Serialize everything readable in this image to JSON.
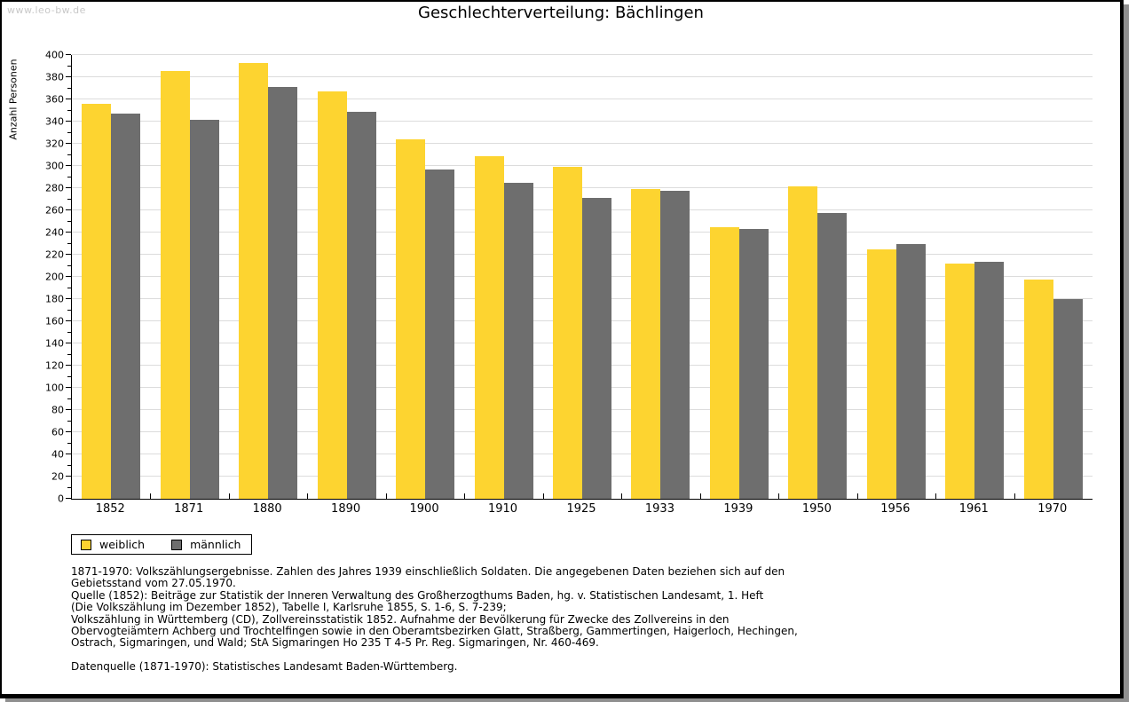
{
  "watermark": "www.leo-bw.de",
  "title": "Geschlechterverteilung: Bächlingen",
  "chart_data": {
    "type": "bar",
    "title": "Geschlechterverteilung: Bächlingen",
    "xlabel": "",
    "ylabel": "Anzahl Personen",
    "ylim": [
      0,
      400
    ],
    "ytick_step": 20,
    "minor_tick_step": 10,
    "yticks": [
      0,
      20,
      40,
      60,
      80,
      100,
      120,
      140,
      160,
      180,
      200,
      220,
      240,
      260,
      280,
      300,
      320,
      340,
      360,
      380,
      400
    ],
    "grid": true,
    "legend_position": "bottom-left",
    "categories": [
      "1852",
      "1871",
      "1880",
      "1890",
      "1900",
      "1910",
      "1925",
      "1933",
      "1939",
      "1950",
      "1956",
      "1961",
      "1970"
    ],
    "series": [
      {
        "name": "weiblich",
        "color": "#FDD430",
        "values": [
          356,
          386,
          393,
          367,
          324,
          309,
          299,
          279,
          245,
          282,
          225,
          212,
          198
        ]
      },
      {
        "name": "männlich",
        "color": "#6E6E6E",
        "values": [
          347,
          342,
          371,
          349,
          297,
          285,
          271,
          278,
          243,
          258,
          230,
          214,
          180
        ]
      }
    ]
  },
  "colors": {
    "female": "#FDD430",
    "male": "#6E6E6E",
    "gridline": "#DCDCDC",
    "watermark": "#C8C8C8",
    "frame_shadow": "#8F8F8F"
  },
  "footnotes": {
    "lines": [
      "1871-1970: Volkszählungsergebnisse. Zahlen des Jahres 1939 einschließlich Soldaten. Die angegebenen Daten beziehen sich auf den",
      "Gebietsstand vom 27.05.1970.",
      "Quelle (1852): Beiträge zur Statistik der Inneren Verwaltung des Großherzogthums Baden, hg. v. Statistischen Landesamt, 1. Heft",
      "(Die Volkszählung im Dezember 1852), Tabelle I, Karlsruhe 1855, S. 1-6, S. 7-239;",
      "Volkszählung in Württemberg (CD), Zollvereinsstatistik 1852. Aufnahme der Bevölkerung für Zwecke des Zollvereins in den",
      "Obervogteiämtern Achberg und Trochtelfingen sowie in den Oberamtsbezirken Glatt, Straßberg, Gammertingen, Haigerloch, Hechingen,",
      "Ostrach, Sigmaringen, und Wald; StA Sigmaringen Ho 235 T 4-5 Pr. Reg. Sigmaringen, Nr. 460-469.",
      "",
      "Datenquelle (1871-1970): Statistisches Landesamt Baden-Württemberg."
    ]
  }
}
